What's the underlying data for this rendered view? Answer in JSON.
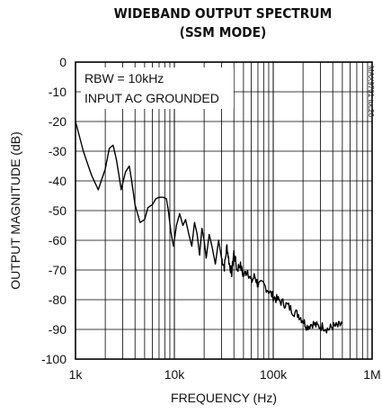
{
  "chart_data": {
    "type": "line",
    "title": "WIDEBAND OUTPUT SPECTRUM",
    "subtitle": "(SSM MODE)",
    "xlabel": "FREQUENCY (Hz)",
    "ylabel": "OUTPUT MAGNITUDE (dB)",
    "x_scale": "log",
    "xlim": [
      1000,
      1000000
    ],
    "ylim": [
      -100,
      0
    ],
    "x_ticks": [
      1000,
      10000,
      100000,
      1000000
    ],
    "x_tick_labels": [
      "1k",
      "10k",
      "100k",
      "1M"
    ],
    "y_ticks": [
      0,
      -10,
      -20,
      -30,
      -40,
      -50,
      -60,
      -70,
      -80,
      -90,
      -100
    ],
    "y_tick_labels": [
      "0",
      "-10",
      "-20",
      "-30",
      "-40",
      "-50",
      "-60",
      "-70",
      "-80",
      "-90",
      "-100"
    ],
    "grid": true,
    "annotations": [
      "RBW = 10kHz",
      "INPUT AC GROUNDED"
    ],
    "part_number": "MAX9701 toc26",
    "series": [
      {
        "x": [
          1000,
          1200,
          1450,
          1700,
          2000,
          2200,
          2400,
          2600,
          2900,
          3200,
          3500,
          3700,
          4000,
          4500,
          5000,
          5400,
          6000,
          6500,
          7000,
          7700,
          8300,
          8700,
          9200,
          9800,
          10500,
          11300,
          12200,
          13000,
          14000,
          15000,
          16000,
          17000,
          18000,
          19000,
          20000,
          21000,
          22500,
          24000,
          26000,
          28000,
          30000,
          32000,
          34000,
          36000,
          38000,
          40000,
          43000,
          46000,
          50000,
          55000,
          60000,
          65000,
          70000,
          80000,
          90000,
          100000,
          110000,
          125000,
          140000,
          160000,
          180000,
          200000,
          220000,
          250000,
          280000,
          320000,
          360000,
          400000,
          450000,
          500000
        ],
        "y": [
          -20,
          -30,
          -38,
          -43,
          -36,
          -29,
          -28,
          -33,
          -43,
          -37,
          -35,
          -40,
          -48,
          -54,
          -53,
          -49,
          -48,
          -46,
          -45.5,
          -45.5,
          -46,
          -50,
          -57,
          -62,
          -55,
          -51,
          -55,
          -53,
          -58,
          -62,
          -54,
          -58,
          -65,
          -56,
          -60,
          -66,
          -58,
          -62,
          -68,
          -60,
          -66,
          -69,
          -62,
          -68,
          -71,
          -64,
          -70,
          -68,
          -72,
          -70,
          -74,
          -72,
          -75,
          -75,
          -77,
          -79,
          -80,
          -81,
          -82,
          -84,
          -85,
          -87,
          -89,
          -88,
          -89,
          -89,
          -90,
          -89,
          -89,
          -88
        ]
      }
    ]
  }
}
